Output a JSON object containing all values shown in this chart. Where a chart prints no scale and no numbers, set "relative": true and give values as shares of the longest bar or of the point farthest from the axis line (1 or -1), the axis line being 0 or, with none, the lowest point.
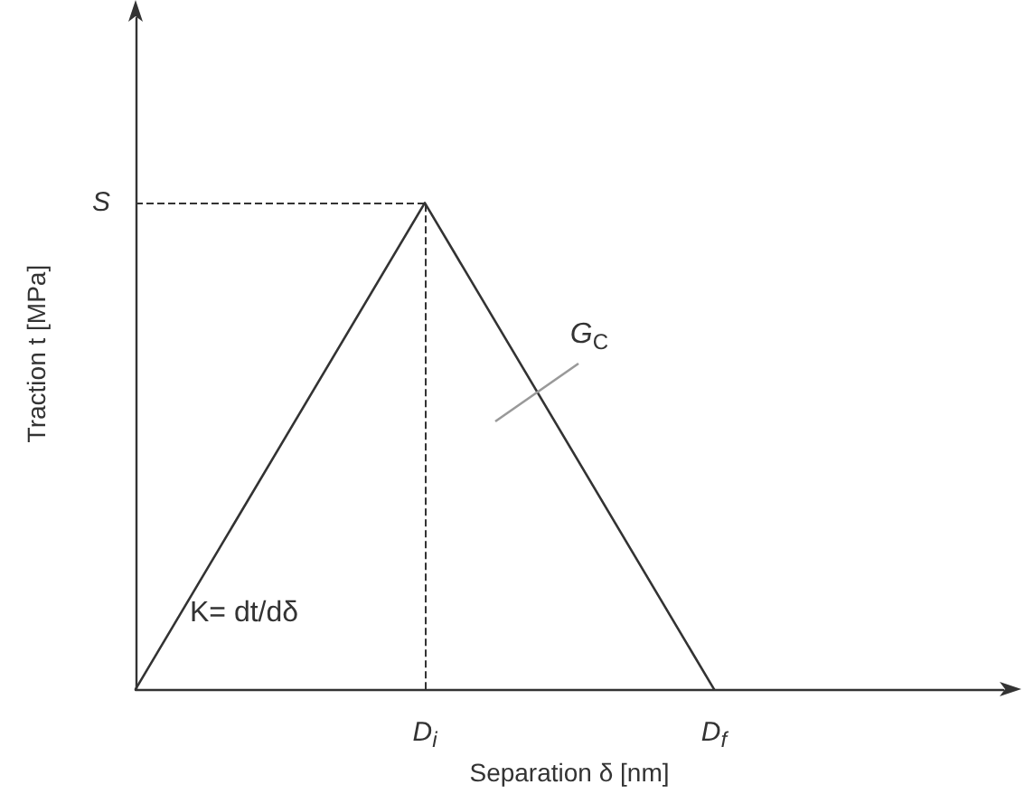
{
  "chart_data": {
    "type": "line",
    "relative": true,
    "xlabel": "Separation δ [nm]",
    "ylabel": "Traction t [MPa]",
    "categories": [
      null,
      "D$_{i}$",
      "D$_{f}$",
      null
    ],
    "series": [
      {
        "color": "#333333",
        "values": [
          0,
          1,
          0,
          null
        ]
      }
    ],
    "marker": "none",
    "line_style": "solid",
    "grid": false,
    "tick_labels": "x",
    "ref_lines": [
      {
        "axis": "y",
        "value": 1,
        "label": "S",
        "line_style": "dashed",
        "color": "#333333"
      },
      {
        "axis": "x",
        "value": "D$_{i}$",
        "line_style": "dashed",
        "color": "#333333"
      }
    ],
    "annotations": [
      "G$_{C}$",
      "K= dt/dδ"
    ]
  }
}
